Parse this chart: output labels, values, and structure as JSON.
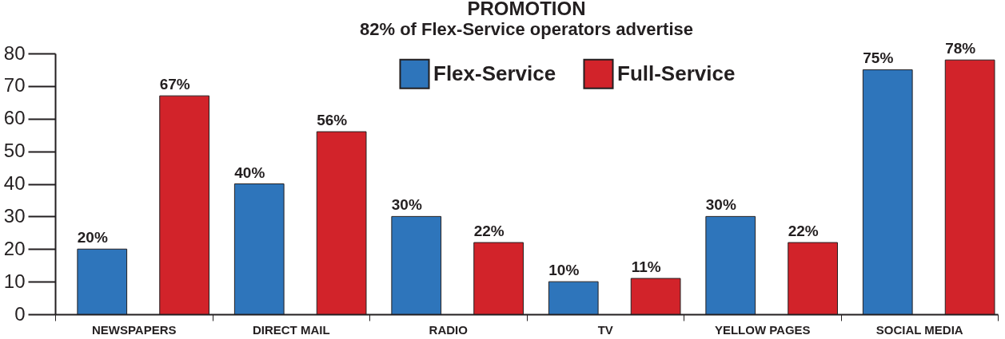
{
  "chart_data": {
    "type": "bar",
    "title": "PROMOTION",
    "subtitle": "82% of Flex-Service operators advertise",
    "categories": [
      "NEWSPAPERS",
      "DIRECT MAIL",
      "RADIO",
      "TV",
      "YELLOW PAGES",
      "SOCIAL MEDIA"
    ],
    "series": [
      {
        "name": "Flex-Service",
        "color": "#2e75bb",
        "values": [
          20,
          40,
          30,
          10,
          30,
          75
        ],
        "value_labels": [
          "20%",
          "40%",
          "30%",
          "10%",
          "30%",
          "75%"
        ]
      },
      {
        "name": "Full-Service",
        "color": "#d2232a",
        "values": [
          67,
          56,
          22,
          11,
          22,
          78
        ],
        "value_labels": [
          "67%",
          "56%",
          "22%",
          "11%",
          "22%",
          "78%"
        ]
      }
    ],
    "ylim": [
      0,
      80
    ],
    "yticks": [
      0,
      10,
      20,
      30,
      40,
      50,
      60,
      70,
      80
    ],
    "grid": false,
    "legend": "top"
  }
}
